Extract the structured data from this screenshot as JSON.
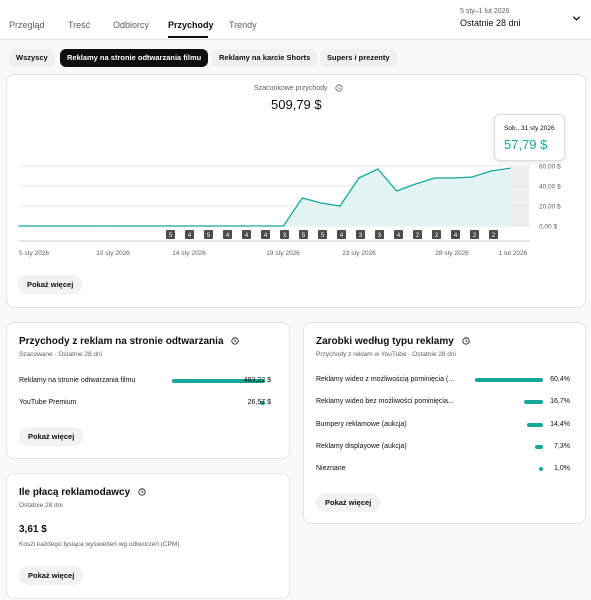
{
  "tabs": [
    "Przegląd",
    "Treść",
    "Odbiorcy",
    "Przychody",
    "Trendy"
  ],
  "active_tab": "Przychody",
  "date_range": {
    "range": "5 sty–1 lut 2026",
    "label": "Ostatnie 28 dni"
  },
  "chips": [
    "Wszyscy",
    "Reklamy na stronie odtwarzania filmu",
    "Reklamy na karcie Shorts",
    "Supers i prezenty"
  ],
  "active_chip": "Reklamy na stronie odtwarzania filmu",
  "revenue_chart": {
    "metric_label": "Szacunkowe przychody",
    "total": "509,79 $",
    "tooltip": {
      "date": "Sob., 31 sty 2026",
      "value": "57,79 $"
    },
    "show_more": "Pokaż więcej"
  },
  "chart_data": {
    "type": "area",
    "x": [
      "5 sty 2026",
      "6 sty 2026",
      "7 sty 2026",
      "8 sty 2026",
      "9 sty 2026",
      "10 sty 2026",
      "11 sty 2026",
      "12 sty 2026",
      "13 sty 2026",
      "14 sty 2026",
      "15 sty 2026",
      "16 sty 2026",
      "17 sty 2026",
      "18 sty 2026",
      "19 sty 2026",
      "20 sty 2026",
      "21 sty 2026",
      "22 sty 2026",
      "23 sty 2026",
      "24 sty 2026",
      "25 sty 2026",
      "26 sty 2026",
      "27 sty 2026",
      "28 sty 2026",
      "29 sty 2026",
      "30 sty 2026",
      "31 sty 2026"
    ],
    "series": [
      {
        "values": [
          0,
          0,
          0,
          0,
          0,
          0,
          0,
          0,
          0,
          0,
          0,
          0,
          0,
          0,
          0,
          28,
          23,
          20,
          48,
          57,
          35,
          42,
          48,
          48,
          49,
          55,
          57.79
        ]
      }
    ],
    "x_tick_labels": [
      "5 sty 2026",
      "10 sty 2026",
      "14 sty 2026",
      "19 sty 2026",
      "23 sty 2026",
      "28 sty 2026",
      "1 lut 2026"
    ],
    "y_tick_labels": [
      "0,00 $",
      "20,00 $",
      "40,00 $",
      "60,00 $"
    ],
    "ylim": [
      0,
      60
    ],
    "highlighted_point": "31 sty 2026",
    "markers": [
      "5",
      "4",
      "5",
      "4",
      "4",
      "4",
      "3",
      "5",
      "5",
      "4",
      "3",
      "3",
      "4",
      "2",
      "2",
      "4",
      "2",
      "2"
    ],
    "color": "#14a89a",
    "fill": "#e3f4f4"
  },
  "watch_page_card": {
    "title": "Przychody z reklam na stronie odtwarzania",
    "subtitle": "Szacowane · Ostatnie 28 dni",
    "rows": [
      {
        "label": "Reklamy na stronie odtwarzania filmu",
        "value": "483,22 $",
        "fraction": 1.0
      },
      {
        "label": "YouTube Premium",
        "value": "26,57 $",
        "fraction": 0.055
      }
    ],
    "show_more": "Pokaż więcej"
  },
  "cpm_card": {
    "title": "Ile płacą reklamodawcy",
    "subtitle": "Ostatnie 28 dni",
    "value": "3,61 $",
    "description": "Koszt każdego tysiąca wyświetleń wg odtworzeń (CPM)",
    "show_more": "Pokaż więcej"
  },
  "ad_type_card": {
    "title": "Zarobki według typu reklamy",
    "subtitle": "Przychody z reklam w YouTube · Ostatnie 28 dni",
    "rows": [
      {
        "label": "Reklamy wideo z możliwością pominięcia (...",
        "value": "60,4%",
        "fraction": 0.604
      },
      {
        "label": "Reklamy wideo bez możliwości pominięcia...",
        "value": "16,7%",
        "fraction": 0.167
      },
      {
        "label": "Bumpery reklamowe (aukcja)",
        "value": "14,4%",
        "fraction": 0.144
      },
      {
        "label": "Reklamy displayowe (aukcja)",
        "value": "7,3%",
        "fraction": 0.073
      },
      {
        "label": "Nieznane",
        "value": "1,0%",
        "fraction": 0.01
      }
    ],
    "show_more": "Pokaż więcej"
  },
  "colors": {
    "accent": "#14a89a",
    "active_chip_bg": "#0f0f0f"
  }
}
